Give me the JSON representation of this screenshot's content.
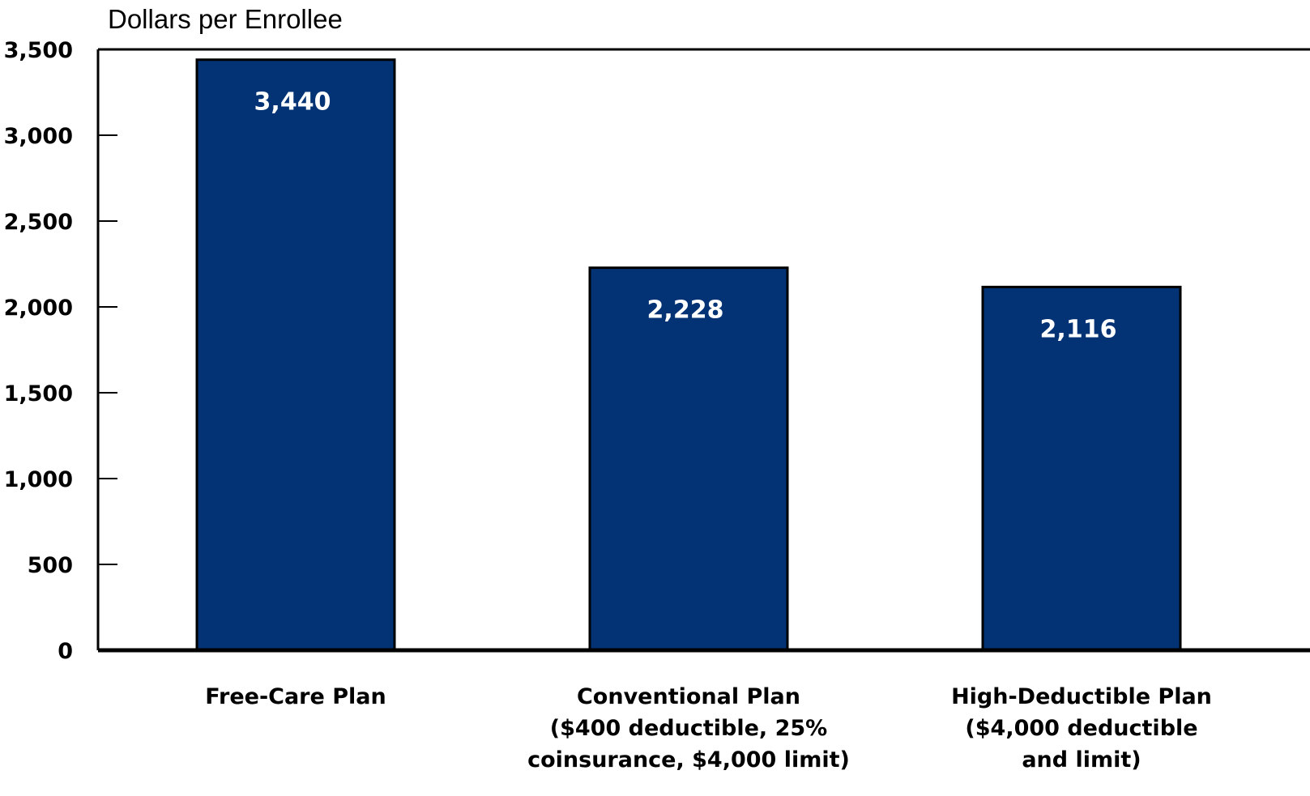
{
  "chart_data": {
    "type": "bar",
    "ylabel": "Dollars per Enrollee",
    "ylim": [
      0,
      3500
    ],
    "yticks": [
      0,
      500,
      1000,
      1500,
      2000,
      2500,
      3000,
      3500
    ],
    "ytick_labels": [
      "0",
      "500",
      "1,000",
      "1,500",
      "2,000",
      "2,500",
      "3,000",
      "3,500"
    ],
    "categories": [
      [
        "Free-Care Plan"
      ],
      [
        "Conventional Plan",
        "($400 deductible, 25%",
        "coinsurance, $4,000 limit)"
      ],
      [
        "High-Deductible Plan",
        "($4,000 deductible",
        "and limit)"
      ]
    ],
    "values": [
      3440,
      2228,
      2116
    ],
    "value_labels": [
      "3,440",
      "2,228",
      "2,116"
    ],
    "bar_color": "#033375",
    "grid": false,
    "legend": "none"
  }
}
